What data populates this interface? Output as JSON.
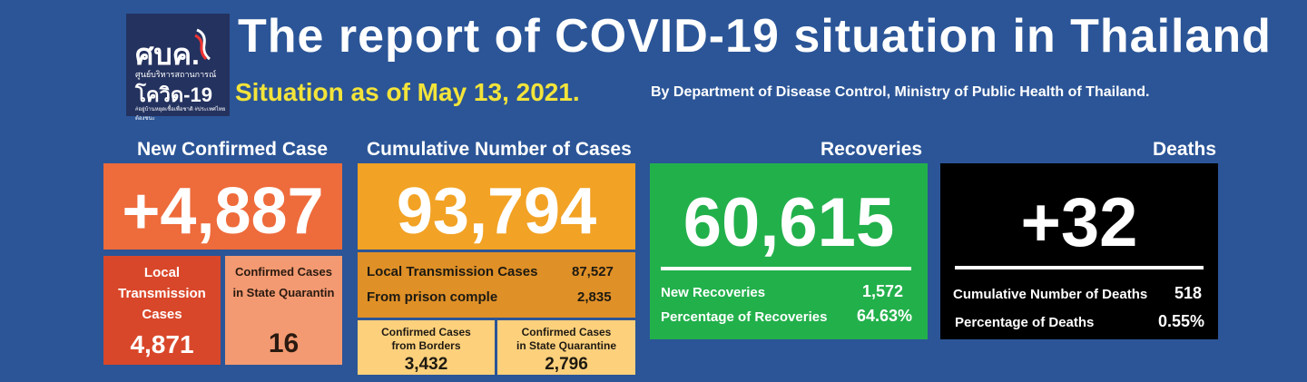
{
  "logo": {
    "top": "ศบค.",
    "small": "ศูนย์บริหารสถานการณ์",
    "mid": "โควิด-19",
    "tiny": "#อยู่บ้านหยุดเชื้อเพื่อชาติ #ประเทศไทยต้องชนะ"
  },
  "title": "The report of COVID-19 situation in Thailand",
  "subtitle": "Situation as of May 13, 2021.",
  "byline": "By Department of Disease Control, Ministry of Public Health of Thailand.",
  "new_confirmed": {
    "header": "New Confirmed Case",
    "value": "+4,887",
    "local_label_1": "Local",
    "local_label_2": "Transmission",
    "local_label_3": "Cases",
    "local_value": "4,871",
    "quarantine_label_1": "Confirmed Cases",
    "quarantine_label_2": "in State Quarantin",
    "quarantine_value": "16"
  },
  "cumulative": {
    "header": "Cumulative Number of Cases",
    "value": "93,794",
    "local_label": "Local Transmission Cases",
    "local_value": "87,527",
    "prison_label": "From prison comple",
    "prison_value": "2,835",
    "borders_label_1": "Confirmed Cases",
    "borders_label_2": "from Borders",
    "borders_value": "3,432",
    "quarantine_label_1": "Confirmed Cases",
    "quarantine_label_2": "in State Quarantine",
    "quarantine_value": "2,796"
  },
  "recoveries": {
    "header": "Recoveries",
    "value": "60,615",
    "new_label": "New Recoveries",
    "new_value": "1,572",
    "pct_label": "Percentage of Recoveries",
    "pct_value": "64.63%"
  },
  "deaths": {
    "header": "Deaths",
    "value": "+32",
    "cum_label": "Cumulative Number of Deaths",
    "cum_value": "518",
    "pct_label": "Percentage of Deaths",
    "pct_value": "0.55%"
  },
  "colors": {
    "background": "#2b5597",
    "new_confirmed": "#ee6b3b",
    "local_box": "#d9472a",
    "quarantine_box": "#f39a72",
    "cumulative": "#f2a224",
    "cumulative_sub": "#df9027",
    "cumulative_light": "#fdd07c",
    "recoveries": "#22b04b",
    "deaths": "#000000",
    "subtitle": "#f3e43a"
  }
}
